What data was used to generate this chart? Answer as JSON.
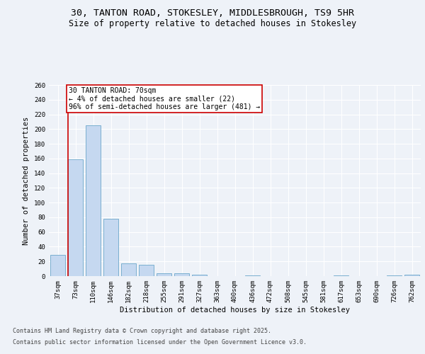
{
  "title_line1": "30, TANTON ROAD, STOKESLEY, MIDDLESBROUGH, TS9 5HR",
  "title_line2": "Size of property relative to detached houses in Stokesley",
  "xlabel": "Distribution of detached houses by size in Stokesley",
  "ylabel": "Number of detached properties",
  "categories": [
    "37sqm",
    "73sqm",
    "110sqm",
    "146sqm",
    "182sqm",
    "218sqm",
    "255sqm",
    "291sqm",
    "327sqm",
    "363sqm",
    "400sqm",
    "436sqm",
    "472sqm",
    "508sqm",
    "545sqm",
    "581sqm",
    "617sqm",
    "653sqm",
    "690sqm",
    "726sqm",
    "762sqm"
  ],
  "values": [
    29,
    159,
    205,
    78,
    17,
    15,
    4,
    4,
    2,
    0,
    0,
    1,
    0,
    0,
    0,
    0,
    1,
    0,
    0,
    1,
    2
  ],
  "bar_color": "#c5d8f0",
  "bar_edge_color": "#7aafcf",
  "annotation_text": "30 TANTON ROAD: 70sqm\n← 4% of detached houses are smaller (22)\n96% of semi-detached houses are larger (481) →",
  "annotation_box_color": "#ffffff",
  "annotation_box_edge_color": "#cc0000",
  "vline_color": "#cc0000",
  "vline_x_index": 1,
  "ylim": [
    0,
    260
  ],
  "yticks": [
    0,
    20,
    40,
    60,
    80,
    100,
    120,
    140,
    160,
    180,
    200,
    220,
    240,
    260
  ],
  "background_color": "#eef2f8",
  "grid_color": "#ffffff",
  "footer_line1": "Contains HM Land Registry data © Crown copyright and database right 2025.",
  "footer_line2": "Contains public sector information licensed under the Open Government Licence v3.0.",
  "title_fontsize": 9.5,
  "subtitle_fontsize": 8.5,
  "axis_label_fontsize": 7.5,
  "tick_fontsize": 6.5,
  "annotation_fontsize": 7.0,
  "footer_fontsize": 6.0
}
